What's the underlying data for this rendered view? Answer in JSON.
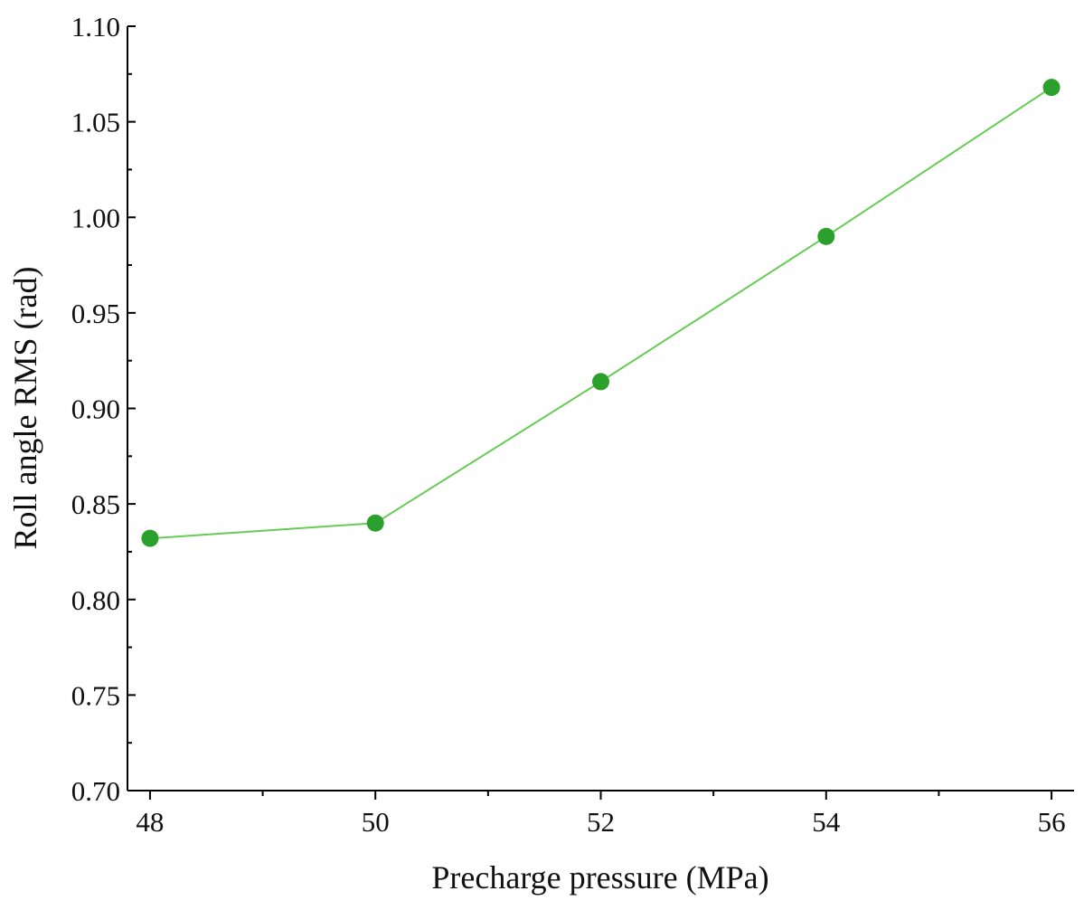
{
  "chart_data": {
    "type": "line",
    "title": "",
    "xlabel": "Precharge pressure (MPa)",
    "ylabel": "Roll angle RMS (rad)",
    "xlim": [
      47.8,
      56.2
    ],
    "ylim": [
      0.7,
      1.1
    ],
    "x_ticks": [
      48,
      50,
      52,
      54,
      56
    ],
    "x_tick_labels": [
      "48",
      "50",
      "52",
      "54",
      "56"
    ],
    "y_ticks": [
      0.7,
      0.75,
      0.8,
      0.85,
      0.9,
      0.95,
      1.0,
      1.05,
      1.1
    ],
    "y_tick_labels": [
      "0.70",
      "0.75",
      "0.80",
      "0.85",
      "0.90",
      "0.95",
      "1.00",
      "1.05",
      "1.10"
    ],
    "grid": false,
    "legend": "none",
    "series": [
      {
        "color": "#2ca02c",
        "line_color": "#66cc55",
        "x": [
          48,
          50,
          52,
          54,
          56
        ],
        "y": [
          0.832,
          0.84,
          0.914,
          0.99,
          1.068
        ]
      }
    ]
  }
}
